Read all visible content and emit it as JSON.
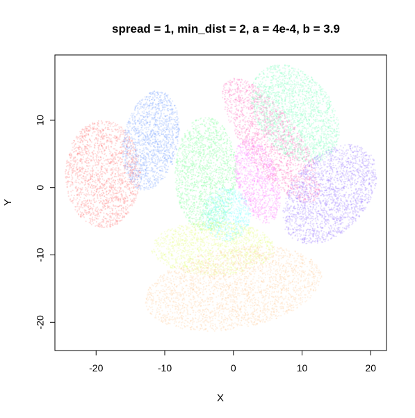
{
  "chart_data": {
    "type": "scatter",
    "title": "spread = 1, min_dist = 2, a = 4e-4, b = 3.9",
    "xlabel": "X",
    "ylabel": "Y",
    "xlim": [
      -26,
      22.3
    ],
    "ylim": [
      -24.2,
      19.7
    ],
    "x_ticks": [
      -20,
      -10,
      0,
      10,
      20
    ],
    "x_tick_labels": [
      "-20",
      "-10",
      "0",
      "10",
      "20"
    ],
    "y_ticks": [
      -20,
      -10,
      0,
      10
    ],
    "y_tick_labels": [
      "-20",
      "-10",
      "0",
      "10"
    ],
    "grid": false,
    "legend": "none",
    "point_alpha": 0.25,
    "clusters": [
      {
        "color": "#ff8080",
        "center": [
          -19,
          2
        ],
        "radius": [
          5.5,
          8
        ],
        "angle": 0,
        "points": 1800
      },
      {
        "color": "#80a8ff",
        "center": [
          -12,
          7
        ],
        "radius": [
          4,
          7.5
        ],
        "angle": -10,
        "points": 1500
      },
      {
        "color": "#80ff9a",
        "center": [
          -4,
          2
        ],
        "radius": [
          4.5,
          8.5
        ],
        "angle": 0,
        "points": 1700
      },
      {
        "color": "#80ffff",
        "center": [
          -1,
          -4
        ],
        "radius": [
          3.5,
          4
        ],
        "angle": 0,
        "points": 700
      },
      {
        "color": "#ff80ff",
        "center": [
          3.5,
          1
        ],
        "radius": [
          3,
          6.5
        ],
        "angle": 15,
        "points": 1000
      },
      {
        "color": "#ff70c0",
        "center": [
          5.5,
          7
        ],
        "radius": [
          4,
          11
        ],
        "angle": 35,
        "points": 1700
      },
      {
        "color": "#80ffc0",
        "center": [
          9,
          11
        ],
        "radius": [
          5.5,
          8
        ],
        "angle": 35,
        "points": 2000
      },
      {
        "color": "#a080ff",
        "center": [
          14,
          -1
        ],
        "radius": [
          5.5,
          8.5
        ],
        "angle": -40,
        "points": 2000
      },
      {
        "color": "#e8ff80",
        "center": [
          -3,
          -9
        ],
        "radius": [
          9,
          4
        ],
        "angle": 0,
        "points": 1400
      },
      {
        "color": "#ffd0a0",
        "center": [
          0,
          -15
        ],
        "radius": [
          13,
          6
        ],
        "angle": 10,
        "points": 2500
      }
    ]
  }
}
